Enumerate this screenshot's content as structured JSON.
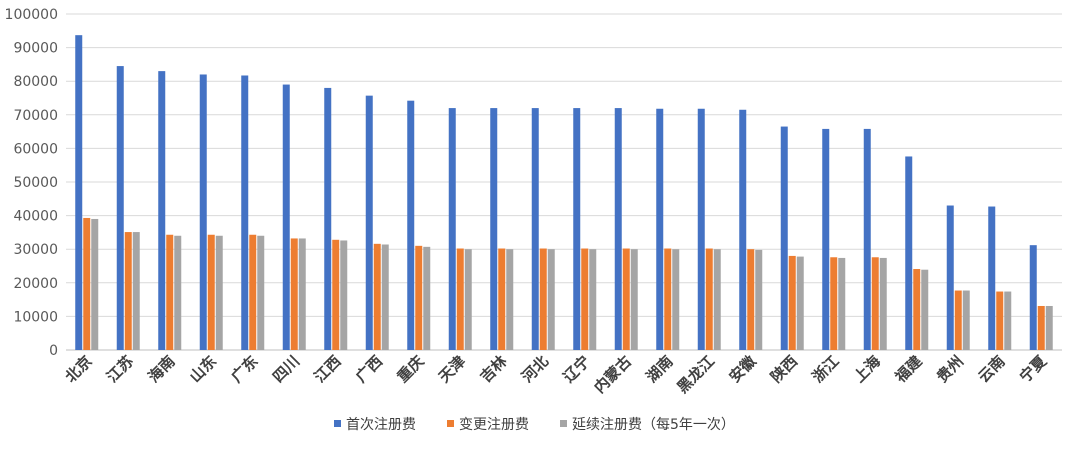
{
  "chart_data": {
    "type": "bar",
    "title": "",
    "xlabel": "",
    "ylabel": "",
    "ylim": [
      0,
      100000
    ],
    "yticks": [
      0,
      10000,
      20000,
      30000,
      40000,
      50000,
      60000,
      70000,
      80000,
      90000,
      100000
    ],
    "grid": true,
    "legend_position": "bottom",
    "categories": [
      "北京",
      "江苏",
      "海南",
      "山东",
      "广东",
      "四川",
      "江西",
      "广西",
      "重庆",
      "天津",
      "吉林",
      "河北",
      "辽宁",
      "内蒙古",
      "湖南",
      "黑龙江",
      "安徽",
      "陕西",
      "浙江",
      "上海",
      "福建",
      "贵州",
      "云南",
      "宁夏"
    ],
    "series": [
      {
        "name": "首次注册费",
        "color": "#4472C4",
        "values": [
          93700,
          84500,
          83000,
          82000,
          81700,
          79000,
          78000,
          75700,
          74200,
          72000,
          72000,
          72000,
          72000,
          72000,
          71800,
          71800,
          71500,
          66500,
          65800,
          65800,
          57600,
          43000,
          42700,
          31200
        ]
      },
      {
        "name": "变更注册费",
        "color": "#ED7D31",
        "values": [
          39300,
          35100,
          34300,
          34300,
          34300,
          33200,
          32800,
          31600,
          31000,
          30200,
          30200,
          30200,
          30200,
          30200,
          30200,
          30200,
          30000,
          28000,
          27600,
          27600,
          24100,
          17700,
          17400,
          13100
        ]
      },
      {
        "name": "延续注册费（每5年一次）",
        "color": "#A5A5A5",
        "values": [
          39000,
          35100,
          34000,
          34000,
          34000,
          33200,
          32600,
          31400,
          30700,
          30000,
          30000,
          30000,
          30000,
          30000,
          30000,
          30000,
          29800,
          27800,
          27400,
          27400,
          23900,
          17700,
          17400,
          13100
        ]
      }
    ]
  }
}
